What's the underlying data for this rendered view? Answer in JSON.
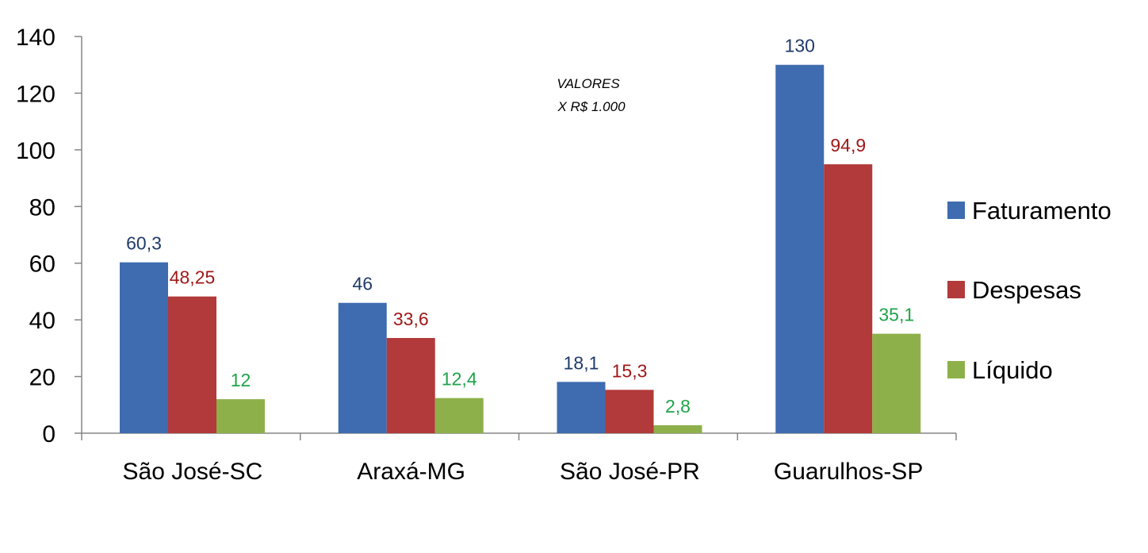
{
  "chart_data": {
    "type": "bar",
    "categories": [
      "São José-SC",
      "Araxá-MG",
      "São José-PR",
      "Guarulhos-SP"
    ],
    "series": [
      {
        "name": "Faturamento",
        "values": [
          60.3,
          46,
          18.1,
          130
        ],
        "labels": [
          "60,3",
          "46",
          "18,1",
          "130"
        ],
        "color": "#3F6BB0",
        "label_color": "#1F3B6B"
      },
      {
        "name": "Despesas",
        "values": [
          48.25,
          33.6,
          15.3,
          94.9
        ],
        "labels": [
          "48,25",
          "33,6",
          "15,3",
          "94,9"
        ],
        "color": "#B23A3A",
        "label_color": "#A01818"
      },
      {
        "name": "Líquido",
        "values": [
          12,
          12.4,
          2.8,
          35.1
        ],
        "labels": [
          "12",
          "12,4",
          "2,8",
          "35,1"
        ],
        "color": "#8DB04A",
        "label_color": "#1FA34A"
      }
    ],
    "ylim": [
      0,
      140
    ],
    "yticks": [
      "0",
      "20",
      "40",
      "60",
      "80",
      "100",
      "120",
      "140"
    ],
    "annotation": [
      "VALORES",
      "X R$ 1.000"
    ],
    "legend_position": "right",
    "grid": false
  }
}
